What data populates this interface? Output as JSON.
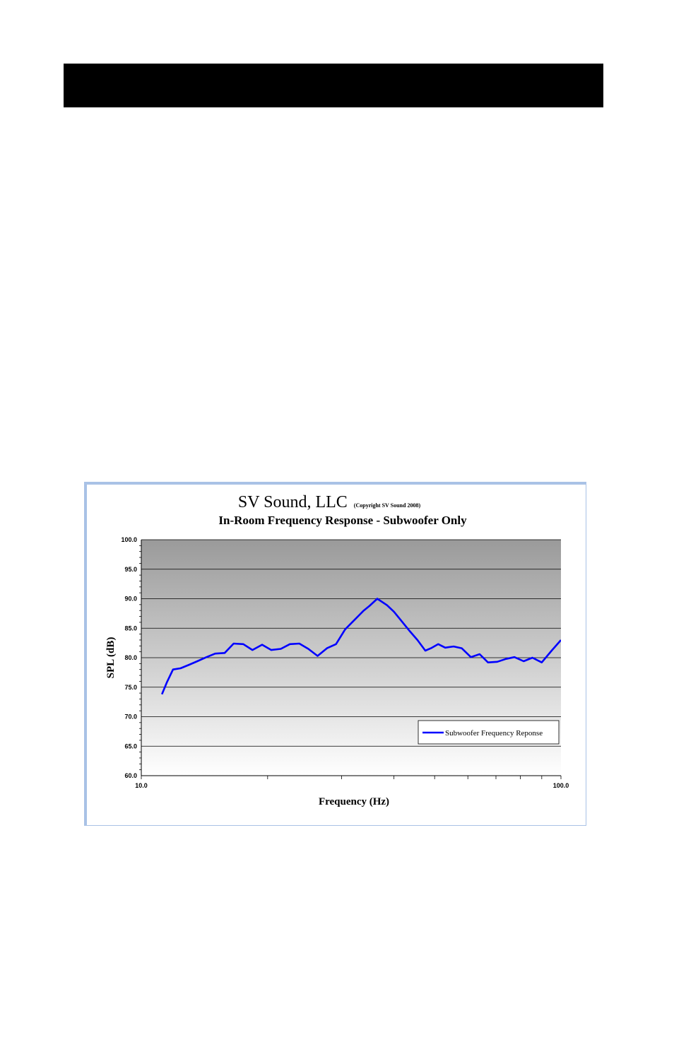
{
  "chart_data": {
    "type": "line",
    "title": "SV Sound, LLC",
    "title_note": "(Copyright SV Sound 2008)",
    "subtitle": "In-Room Frequency Response - Subwoofer Only",
    "xlabel": "Frequency (Hz)",
    "ylabel": "SPL (dB)",
    "x_scale": "log",
    "xlim": [
      10.0,
      100.0
    ],
    "ylim": [
      60.0,
      100.0
    ],
    "x_tick_labels": [
      "10.0",
      "100.0"
    ],
    "y_ticks": [
      "60.0",
      "65.0",
      "70.0",
      "75.0",
      "80.0",
      "85.0",
      "90.0",
      "95.0",
      "100.0"
    ],
    "grid": true,
    "legend_position": "bottom-right",
    "series": [
      {
        "name": "Subwoofer Frequency Reponse",
        "color": "#0000ff",
        "x": [
          11.2,
          11.5,
          11.9,
          12.4,
          13.0,
          13.6,
          14.3,
          15.0,
          15.8,
          16.6,
          17.5,
          18.4,
          19.4,
          20.4,
          21.5,
          22.6,
          23.8,
          25.0,
          26.3,
          27.7,
          29.1,
          30.6,
          32.2,
          33.9,
          35.0,
          36.5,
          38.5,
          40.0,
          41.5,
          43.5,
          45.5,
          47.5,
          49.0,
          51.0,
          53.0,
          55.5,
          58.0,
          61.0,
          64.0,
          67.0,
          70.5,
          74.0,
          77.5,
          81.5,
          85.5,
          90.0,
          95.0,
          100.0
        ],
        "y": [
          73.8,
          75.8,
          78.0,
          78.2,
          78.8,
          79.4,
          80.1,
          80.7,
          80.8,
          82.4,
          82.3,
          81.3,
          82.2,
          81.3,
          81.5,
          82.3,
          82.4,
          81.5,
          80.3,
          81.6,
          82.3,
          84.8,
          86.4,
          88.0,
          88.8,
          90.0,
          88.9,
          87.8,
          86.4,
          84.6,
          83.0,
          81.2,
          81.6,
          82.3,
          81.7,
          81.9,
          81.6,
          80.1,
          80.6,
          79.2,
          79.3,
          79.8,
          80.1,
          79.4,
          80.0,
          79.2,
          81.2,
          83.0
        ]
      }
    ]
  }
}
